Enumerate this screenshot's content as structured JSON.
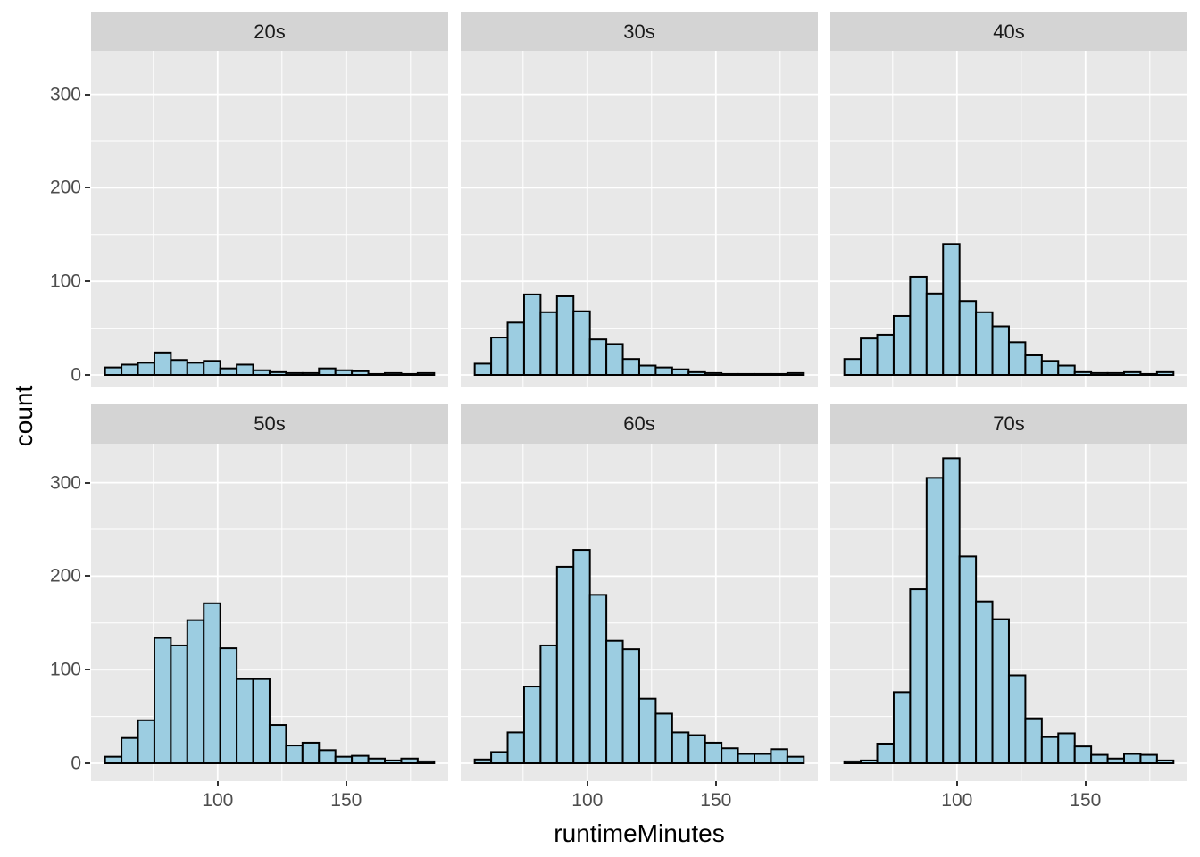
{
  "axes": {
    "x_title": "runtimeMinutes",
    "y_title": "count",
    "y_tick_labels": [
      "0",
      "100",
      "200",
      "300"
    ],
    "x_tick_labels": [
      "100",
      "150"
    ]
  },
  "colors": {
    "bar_fill": "#9CCDE1",
    "bar_stroke": "#000000",
    "panel_bg": "#E8E8E8",
    "strip_bg": "#D4D4D4",
    "grid_line": "#FFFFFF",
    "tick_label": "#4D4D4D",
    "tick_mark": "#333333",
    "strip_text": "#1A1A1A"
  },
  "chart_data": {
    "type": "bar",
    "subtype": "faceted_histogram",
    "title": "",
    "xlabel": "runtimeMinutes",
    "ylabel": "count",
    "x_ticks": [
      100,
      150
    ],
    "y_ticks": [
      0,
      100,
      200,
      300
    ],
    "x_range": [
      51,
      190
    ],
    "y_range": [
      0,
      345
    ],
    "bin_start": 56.2,
    "bin_width": 6.4,
    "grid": "on",
    "legend": "none",
    "facet_layout": [
      [
        "20s",
        "30s",
        "40s"
      ],
      [
        "50s",
        "60s",
        "70s"
      ]
    ],
    "facets": [
      {
        "label": "20s",
        "counts": [
          8,
          11,
          13,
          24,
          16,
          13,
          15,
          7,
          11,
          5,
          3,
          2,
          2,
          7,
          5,
          4,
          1,
          2,
          1,
          2
        ]
      },
      {
        "label": "30s",
        "counts": [
          12,
          40,
          56,
          86,
          67,
          84,
          68,
          38,
          33,
          17,
          10,
          8,
          6,
          3,
          2,
          1,
          1,
          1,
          1,
          2
        ]
      },
      {
        "label": "40s",
        "counts": [
          17,
          39,
          43,
          63,
          105,
          87,
          140,
          79,
          67,
          52,
          35,
          21,
          15,
          10,
          3,
          2,
          2,
          3,
          1,
          3
        ]
      },
      {
        "label": "50s",
        "counts": [
          7,
          27,
          46,
          134,
          126,
          153,
          171,
          123,
          90,
          90,
          41,
          19,
          22,
          14,
          7,
          8,
          5,
          3,
          5,
          2
        ]
      },
      {
        "label": "60s",
        "counts": [
          4,
          12,
          33,
          82,
          126,
          210,
          228,
          180,
          131,
          122,
          69,
          53,
          33,
          30,
          22,
          16,
          10,
          10,
          15,
          7
        ]
      },
      {
        "label": "70s",
        "counts": [
          2,
          3,
          21,
          76,
          186,
          305,
          326,
          221,
          173,
          154,
          94,
          48,
          28,
          32,
          18,
          9,
          5,
          10,
          9,
          3
        ]
      }
    ]
  }
}
